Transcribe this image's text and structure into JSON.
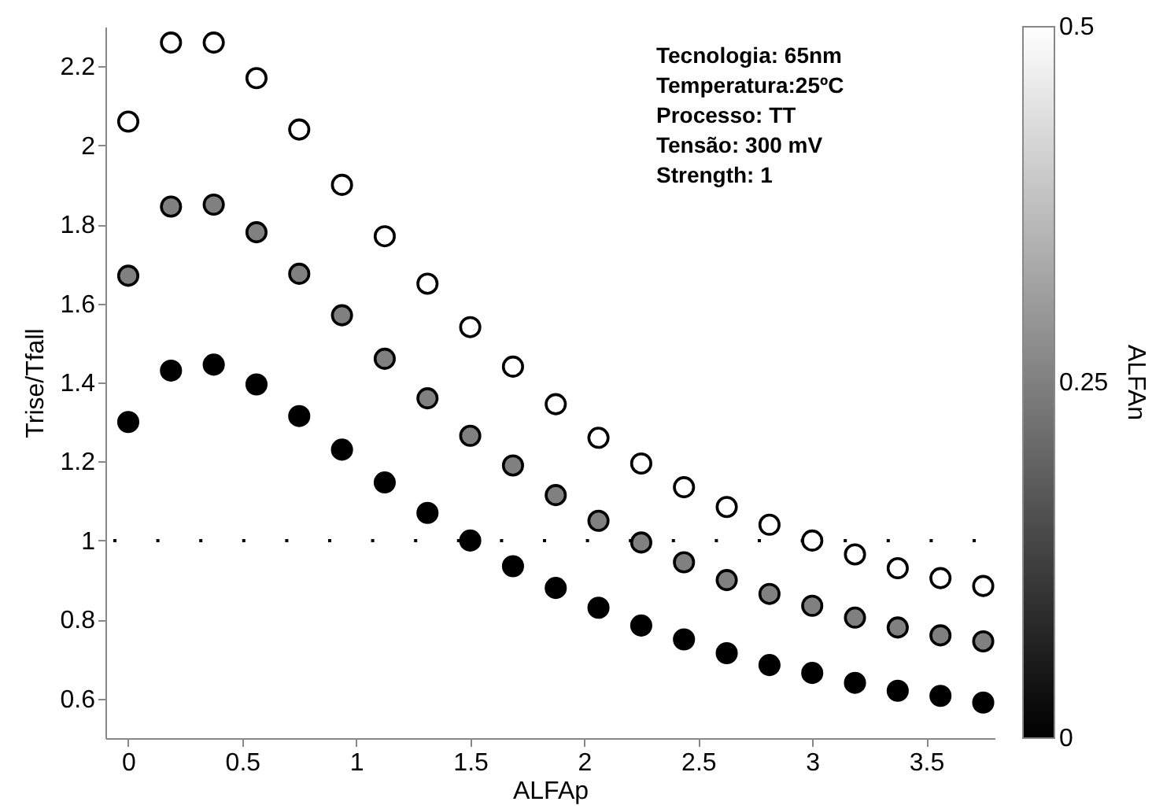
{
  "chart_data": {
    "type": "scatter",
    "xlabel": "ALFAp",
    "ylabel": "Trise/Tfall",
    "clabel": "ALFAn",
    "x": [
      0,
      0.1875,
      0.375,
      0.5625,
      0.75,
      0.9375,
      1.125,
      1.3125,
      1.5,
      1.6875,
      1.875,
      2.0625,
      2.25,
      2.4375,
      2.625,
      2.8125,
      3.0,
      3.1875,
      3.375,
      3.5625,
      3.75
    ],
    "series": [
      {
        "cvalues": [
          0.5,
          0.5,
          0.5,
          0.5,
          0.5,
          0.5,
          0.5,
          0.5,
          0.5,
          0.5,
          0.5,
          0.5,
          0.5,
          0.5,
          0.5,
          0.5,
          0.5,
          0.5,
          0.5,
          0.5,
          0.5
        ],
        "values": [
          2.06,
          2.26,
          2.26,
          2.17,
          2.04,
          1.9,
          1.77,
          1.65,
          1.54,
          1.44,
          1.345,
          1.26,
          1.195,
          1.135,
          1.085,
          1.04,
          1.0,
          0.965,
          0.93,
          0.905,
          0.885
        ]
      },
      {
        "cvalues": [
          0.25,
          0.25,
          0.25,
          0.25,
          0.25,
          0.25,
          0.25,
          0.25,
          0.25,
          0.25,
          0.25,
          0.25,
          0.25,
          0.25,
          0.25,
          0.25,
          0.25,
          0.25,
          0.25,
          0.25,
          0.25
        ],
        "values": [
          1.67,
          1.845,
          1.85,
          1.78,
          1.675,
          1.57,
          1.46,
          1.36,
          1.265,
          1.19,
          1.115,
          1.05,
          0.995,
          0.945,
          0.9,
          0.865,
          0.835,
          0.805,
          0.78,
          0.76,
          0.745
        ]
      },
      {
        "cvalues": [
          0,
          0,
          0,
          0,
          0,
          0,
          0,
          0,
          0,
          0,
          0,
          0,
          0,
          0,
          0,
          0,
          0,
          0,
          0,
          0,
          0
        ],
        "values": [
          1.3,
          1.43,
          1.445,
          1.395,
          1.315,
          1.23,
          1.147,
          1.07,
          1.0,
          0.935,
          0.88,
          0.83,
          0.785,
          0.75,
          0.715,
          0.685,
          0.665,
          0.64,
          0.62,
          0.607,
          0.59
        ]
      }
    ],
    "xlim": [
      -0.1,
      3.8
    ],
    "xticks": [
      0,
      0.5,
      1,
      1.5,
      2,
      2.5,
      3,
      3.5
    ],
    "ylim": [
      0.5,
      2.3
    ],
    "yticks": [
      0.6,
      0.8,
      1,
      1.2,
      1.4,
      1.6,
      1.8,
      2,
      2.2
    ],
    "clim": [
      0,
      0.5
    ],
    "cticks": [
      0,
      0.25,
      0.5
    ],
    "marker": "circle",
    "ref_lines": [
      {
        "axis": "y",
        "value": 1,
        "line_style": "dotted",
        "color": "#000000"
      }
    ],
    "annotations": [
      "Tecnologia: 65nm",
      "Temperatura:25ºC",
      "Processo: TT",
      "Tensão: 300 mV",
      "Strength: 1"
    ]
  }
}
